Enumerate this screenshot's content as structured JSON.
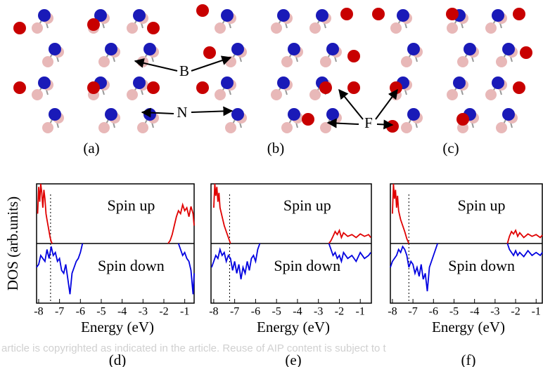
{
  "structures": {
    "panels": [
      "(a)",
      "(b)",
      "(c)"
    ],
    "atom_labels": [
      "B",
      "N",
      "F"
    ]
  },
  "watermark": "article is copyrighted as indicated in the article. Reuse of AIP content is subject to t",
  "chart_data": [
    {
      "type": "line",
      "panel": "(d)",
      "xlabel": "Energy (eV)",
      "ylabel": "DOS (arb.units)",
      "xlim": [
        -8.1,
        -0.55
      ],
      "ylim": [
        -1,
        1
      ],
      "xticks": [
        -8,
        -7,
        -6,
        -5,
        -4,
        -3,
        -2,
        -1
      ],
      "fermi_level": -7.43,
      "series": [
        {
          "name": "Spin up",
          "color": "#e00000",
          "x": [
            -8.05,
            -8.0,
            -7.95,
            -7.9,
            -7.85,
            -7.8,
            -7.75,
            -7.7,
            -7.65,
            -7.6,
            -7.55,
            -7.5,
            -7.45,
            -7.4,
            -7.35,
            null,
            -1.8,
            -1.7,
            -1.6,
            -1.5,
            -1.4,
            -1.3,
            -1.2,
            -1.1,
            -1.0,
            -0.9,
            -0.8,
            -0.7,
            -0.6,
            -0.55
          ],
          "values": [
            0.5,
            0.95,
            0.7,
            1.0,
            0.85,
            0.6,
            0.9,
            0.75,
            0.5,
            0.4,
            0.3,
            0.2,
            0.1,
            0.03,
            0,
            null,
            0,
            0.05,
            0.15,
            0.3,
            0.45,
            0.55,
            0.5,
            0.65,
            0.55,
            0.6,
            0.45,
            0.62,
            0.5,
            0.3
          ]
        },
        {
          "name": "Spin down",
          "color": "#0000e0",
          "x": [
            -8.1,
            -8.0,
            -7.9,
            -7.8,
            -7.7,
            -7.6,
            -7.5,
            -7.4,
            -7.3,
            -7.2,
            -7.1,
            -7.0,
            -6.9,
            -6.8,
            -6.7,
            -6.6,
            -6.5,
            -6.4,
            -6.3,
            -6.2,
            -6.1,
            -6.0,
            -5.9,
            null,
            -1.3,
            -1.2,
            -1.1,
            -1.0,
            -0.9,
            -0.8,
            -0.7,
            -0.6,
            -0.55
          ],
          "values": [
            -0.4,
            -0.35,
            -0.2,
            -0.25,
            -0.3,
            -0.1,
            -0.25,
            -0.05,
            -0.2,
            -0.15,
            -0.3,
            -0.25,
            -0.45,
            -0.5,
            -0.35,
            -0.6,
            -0.85,
            -0.5,
            -0.4,
            -0.3,
            -0.25,
            -0.15,
            0,
            null,
            0,
            -0.1,
            -0.2,
            -0.15,
            -0.25,
            -0.3,
            -0.45,
            -0.85,
            -0.5
          ]
        }
      ]
    },
    {
      "type": "line",
      "panel": "(e)",
      "xlabel": "Energy (eV)",
      "xlim": [
        -8.13,
        -0.47
      ],
      "ylim": [
        -1,
        1
      ],
      "xticks": [
        -8,
        -7,
        -6,
        -5,
        -4,
        -3,
        -2,
        -1
      ],
      "fermi_level": -7.24,
      "series": [
        {
          "name": "Spin up",
          "color": "#e00000",
          "x": [
            -8.0,
            -7.95,
            -7.9,
            -7.85,
            -7.8,
            -7.75,
            -7.7,
            -7.6,
            -7.5,
            -7.4,
            -7.3,
            -7.2,
            null,
            -2.5,
            -2.4,
            -2.3,
            -2.2,
            -2.1,
            -2.0,
            -1.9,
            -1.8,
            -1.6,
            -1.4,
            -1.2,
            -1.0,
            -0.8,
            -0.6,
            -0.5
          ],
          "values": [
            0.6,
            1.0,
            0.8,
            0.95,
            0.7,
            0.85,
            0.6,
            0.45,
            0.3,
            0.2,
            0.1,
            0,
            null,
            0,
            0.05,
            0.12,
            0.2,
            0.15,
            0.22,
            0.1,
            0.18,
            0.12,
            0.15,
            0.1,
            0.16,
            0.12,
            0.15,
            0.1
          ]
        },
        {
          "name": "Spin down",
          "color": "#0000e0",
          "x": [
            -8.1,
            -8.0,
            -7.9,
            -7.8,
            -7.7,
            -7.6,
            -7.5,
            -7.4,
            -7.3,
            -7.2,
            -7.1,
            -7.0,
            -6.9,
            -6.8,
            -6.7,
            -6.6,
            -6.5,
            -6.4,
            -6.3,
            -6.2,
            -6.1,
            -6.0,
            -5.9,
            -5.8,
            null,
            -2.5,
            -2.4,
            -2.3,
            -2.2,
            -2.1,
            -2.0,
            -1.9,
            -1.8,
            -1.6,
            -1.4,
            -1.2,
            -1.0,
            -0.8,
            -0.6,
            -0.5
          ],
          "values": [
            -0.4,
            -0.3,
            -0.2,
            -0.25,
            -0.1,
            -0.2,
            -0.15,
            -0.3,
            -0.2,
            -0.25,
            -0.45,
            -0.3,
            -0.5,
            -0.35,
            -0.6,
            -0.4,
            -0.5,
            -0.3,
            -0.45,
            -0.25,
            -0.2,
            -0.3,
            -0.1,
            0,
            null,
            0,
            -0.1,
            -0.2,
            -0.15,
            -0.25,
            -0.2,
            -0.3,
            -0.15,
            -0.25,
            -0.2,
            -0.3,
            -0.15,
            -0.25,
            -0.2,
            -0.15
          ]
        }
      ]
    },
    {
      "type": "line",
      "panel": "(f)",
      "xlabel": "Energy (eV)",
      "xlim": [
        -8.1,
        -0.7
      ],
      "ylim": [
        -1,
        1
      ],
      "xticks": [
        -8,
        -7,
        -6,
        -5,
        -4,
        -3,
        -2,
        -1
      ],
      "fermi_level": -7.2,
      "series": [
        {
          "name": "Spin up",
          "color": "#e00000",
          "x": [
            -8.0,
            -7.95,
            -7.9,
            -7.85,
            -7.8,
            -7.75,
            -7.7,
            -7.6,
            -7.5,
            -7.4,
            -7.3,
            -7.2,
            null,
            -2.4,
            -2.3,
            -2.2,
            -2.1,
            -2.0,
            -1.9,
            -1.8,
            -1.6,
            -1.4,
            -1.2,
            -1.0,
            -0.8,
            -0.7
          ],
          "values": [
            0.5,
            1.0,
            0.75,
            0.9,
            0.6,
            0.8,
            0.55,
            0.4,
            0.3,
            0.2,
            0.08,
            0,
            null,
            0,
            0.12,
            0.2,
            0.16,
            0.22,
            0.12,
            0.18,
            0.1,
            0.16,
            0.12,
            0.15,
            0.1,
            0.14
          ]
        },
        {
          "name": "Spin down",
          "color": "#0000e0",
          "x": [
            -8.1,
            -8.0,
            -7.9,
            -7.8,
            -7.7,
            -7.6,
            -7.5,
            -7.4,
            -7.3,
            -7.2,
            -7.1,
            -7.0,
            -6.9,
            -6.8,
            -6.7,
            -6.6,
            -6.5,
            -6.4,
            -6.3,
            -6.2,
            -6.1,
            -6.0,
            -5.9,
            -5.8,
            null,
            -2.4,
            -2.3,
            -2.2,
            -2.1,
            -2.0,
            -1.9,
            -1.8,
            -1.6,
            -1.4,
            -1.2,
            -1.0,
            -0.8,
            -0.7
          ],
          "values": [
            -0.4,
            -0.3,
            -0.25,
            -0.2,
            -0.1,
            -0.15,
            -0.05,
            -0.1,
            -0.2,
            -0.4,
            -0.3,
            -0.35,
            -0.5,
            -0.4,
            -0.55,
            -0.35,
            -0.6,
            -0.5,
            -0.8,
            -0.4,
            -0.3,
            -0.2,
            -0.1,
            0,
            null,
            0,
            -0.1,
            -0.15,
            -0.2,
            -0.12,
            -0.2,
            -0.15,
            -0.22,
            -0.12,
            -0.2,
            -0.15,
            -0.2,
            -0.15
          ]
        }
      ]
    }
  ]
}
